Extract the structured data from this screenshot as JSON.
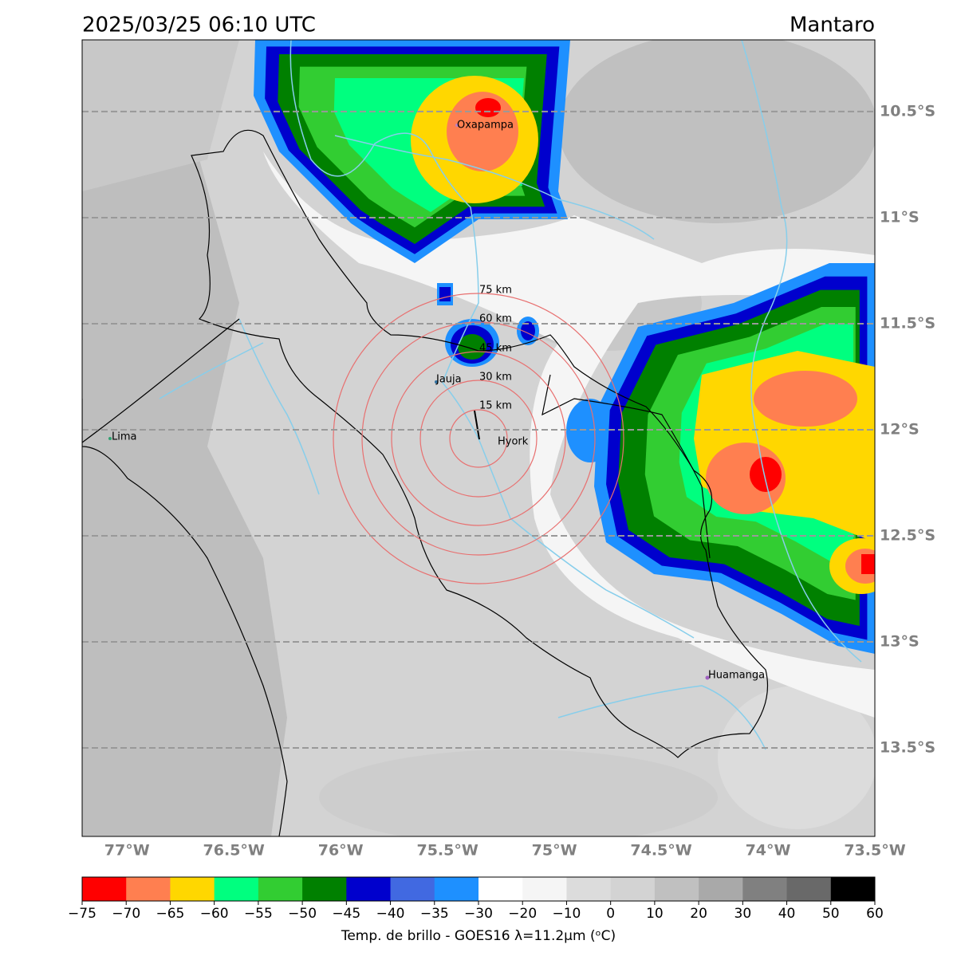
{
  "header": {
    "title": "2025/03/25 06:10 UTC",
    "region": "Mantaro"
  },
  "map": {
    "xlim": [
      -77.21,
      -73.5
    ],
    "ylim": [
      -13.917,
      -10.162
    ],
    "xticks": [
      {
        "value": -77,
        "label": "77°W"
      },
      {
        "value": -76.5,
        "label": "76.5°W"
      },
      {
        "value": -76,
        "label": "76°W"
      },
      {
        "value": -75.5,
        "label": "75.5°W"
      },
      {
        "value": -75,
        "label": "75°W"
      },
      {
        "value": -74.5,
        "label": "74.5°W"
      },
      {
        "value": -74,
        "label": "74°W"
      },
      {
        "value": -73.5,
        "label": "73.5°W"
      }
    ],
    "yticks": [
      {
        "value": -10.5,
        "label": "10.5°S"
      },
      {
        "value": -11,
        "label": "11°S"
      },
      {
        "value": -11.5,
        "label": "11.5°S"
      },
      {
        "value": -12,
        "label": "12°S"
      },
      {
        "value": -12.5,
        "label": "12.5°S"
      },
      {
        "value": -13,
        "label": "13°S"
      },
      {
        "value": -13.5,
        "label": "13.5°S"
      }
    ],
    "grid": true,
    "places": [
      "Oxapampa",
      "Jauja",
      "Lima",
      "Hyork",
      "Huamanga"
    ],
    "rings": [
      "15 km",
      "30 km",
      "45 km",
      "60 km",
      "75 km"
    ]
  },
  "colorbar": {
    "label": "Temp. de brillo - GOES16 λ=11.2μm (ᵒC)",
    "ticks": [
      {
        "value": -75,
        "label": "−75"
      },
      {
        "value": -70,
        "label": "−70"
      },
      {
        "value": -65,
        "label": "−65"
      },
      {
        "value": -60,
        "label": "−60"
      },
      {
        "value": -55,
        "label": "−55"
      },
      {
        "value": -50,
        "label": "−50"
      },
      {
        "value": -45,
        "label": "−45"
      },
      {
        "value": -40,
        "label": "−40"
      },
      {
        "value": -35,
        "label": "−35"
      },
      {
        "value": -30,
        "label": "−30"
      },
      {
        "value": -20,
        "label": "−20"
      },
      {
        "value": -10,
        "label": "−10"
      },
      0,
      10,
      20,
      30,
      40,
      50,
      60
    ],
    "colors": [
      "#ff0000",
      "#ff7f50",
      "#ffd700",
      "#00ff7f",
      "#32cd32",
      "#008000",
      "#0000cd",
      "#4169e1",
      "#1e90ff",
      "#ffffff",
      "#f5f5f5",
      "#dcdcdc",
      "#d3d3d3",
      "#c0c0c0",
      "#a9a9a9",
      "#808080",
      "#696969",
      "#000000"
    ]
  }
}
